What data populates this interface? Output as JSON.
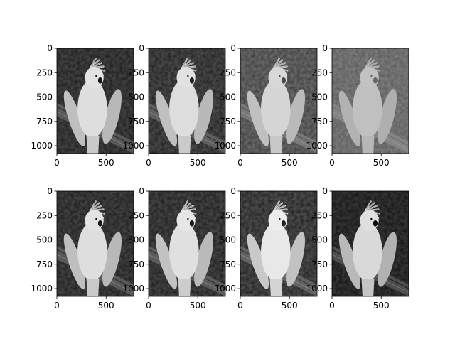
{
  "chart_data": {
    "type": "image-grid",
    "rows": 2,
    "cols": 4,
    "image_subject": "cockatoo perched on a branch, grayscale",
    "xlim": [
      0,
      780
    ],
    "ylim": [
      1080,
      0
    ],
    "xticks": [
      0,
      500
    ],
    "yticks": [
      0,
      250,
      500,
      750,
      1000
    ],
    "colormap": "gray",
    "grid": false,
    "panels": [
      {
        "row": 0,
        "col": 0,
        "brightness": 0.42,
        "contrast": 1.0
      },
      {
        "row": 0,
        "col": 1,
        "brightness": 0.44,
        "contrast": 0.95
      },
      {
        "row": 0,
        "col": 2,
        "brightness": 0.52,
        "contrast": 0.7
      },
      {
        "row": 0,
        "col": 3,
        "brightness": 0.55,
        "contrast": 0.45
      },
      {
        "row": 1,
        "col": 0,
        "brightness": 0.42,
        "contrast": 1.0
      },
      {
        "row": 1,
        "col": 1,
        "brightness": 0.43,
        "contrast": 1.0
      },
      {
        "row": 1,
        "col": 2,
        "brightness": 0.46,
        "contrast": 1.0
      },
      {
        "row": 1,
        "col": 3,
        "brightness": 0.38,
        "contrast": 1.05
      }
    ]
  }
}
